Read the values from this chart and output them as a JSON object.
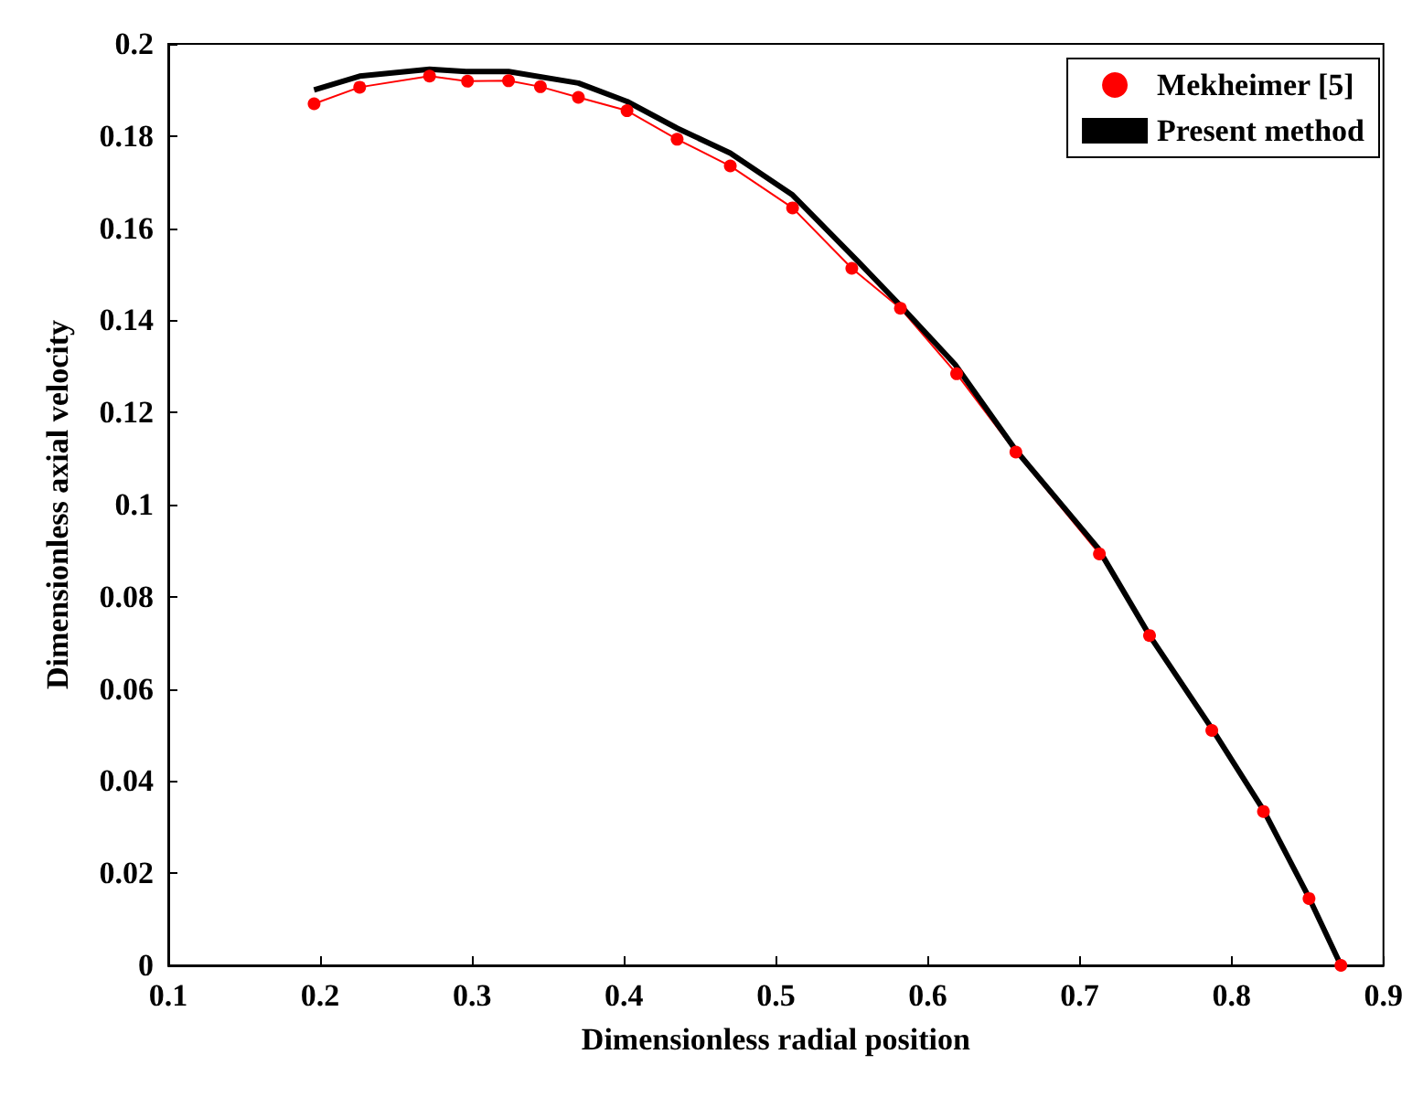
{
  "chart_data": {
    "type": "line",
    "xlabel": "Dimensionless radial position",
    "ylabel": "Dimensionless axial velocity",
    "xlim": [
      0.1,
      0.9
    ],
    "xticks": [
      0.1,
      0.2,
      0.3,
      0.4,
      0.5,
      0.6,
      0.7,
      0.8,
      0.9
    ],
    "ylim": [
      0,
      0.2
    ],
    "yticks": [
      0,
      0.02,
      0.04,
      0.06,
      0.08,
      0.1,
      0.12,
      0.14,
      0.16,
      0.18,
      0.2
    ],
    "grid": false,
    "legend": "top right",
    "series": [
      {
        "name": "Mekheimer [5]",
        "color": "#ff0000",
        "marker": "circle",
        "x": [
          0.196,
          0.226,
          0.272,
          0.297,
          0.324,
          0.345,
          0.37,
          0.402,
          0.435,
          0.47,
          0.511,
          0.55,
          0.582,
          0.619,
          0.658,
          0.713,
          0.746,
          0.787,
          0.821,
          0.851,
          0.872
        ],
        "values": [
          0.187,
          0.1906,
          0.193,
          0.1919,
          0.192,
          0.1907,
          0.1884,
          0.1855,
          0.1793,
          0.1735,
          0.1644,
          0.1513,
          0.1426,
          0.1284,
          0.1114,
          0.0893,
          0.0716,
          0.051,
          0.0334,
          0.0145,
          0
        ]
      },
      {
        "name": "Present method",
        "color": "#000000",
        "marker": "none",
        "x": [
          0.196,
          0.226,
          0.272,
          0.296,
          0.324,
          0.37,
          0.402,
          0.435,
          0.47,
          0.511,
          0.554,
          0.582,
          0.618,
          0.658,
          0.712,
          0.746,
          0.787,
          0.821,
          0.851,
          0.872
        ],
        "values": [
          0.19,
          0.193,
          0.1945,
          0.194,
          0.194,
          0.1915,
          0.1875,
          0.1817,
          0.1763,
          0.1672,
          0.1528,
          0.1432,
          0.1304,
          0.1118,
          0.0906,
          0.0716,
          0.0514,
          0.0337,
          0.0147,
          0
        ]
      }
    ]
  }
}
